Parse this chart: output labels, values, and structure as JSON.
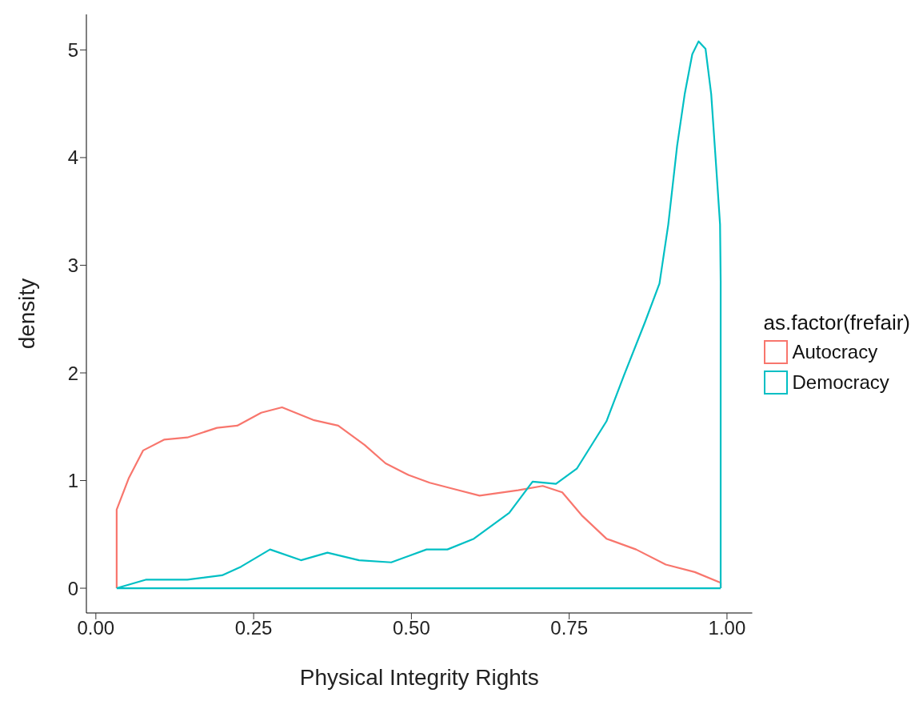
{
  "chart_data": {
    "type": "line",
    "xlabel": "Physical Integrity Rights",
    "ylabel": "density",
    "legend_title": "as.factor(frefair)",
    "legend": "right",
    "grid": false,
    "marker": "none",
    "line_style": "solid",
    "xlim": [
      -0.015,
      1.04
    ],
    "xticks": [
      {
        "value": 0,
        "label": "0.00"
      },
      {
        "value": 0.25,
        "label": "0.25"
      },
      {
        "value": 0.5,
        "label": "0.50"
      },
      {
        "value": 0.75,
        "label": "0.75"
      },
      {
        "value": 1,
        "label": "1.00"
      }
    ],
    "ylim": [
      -0.23,
      5.33
    ],
    "yticks": [
      0,
      1,
      2,
      3,
      4,
      5
    ],
    "ref_lines": [
      {
        "axis": "y",
        "value": 0,
        "color": "#00bfc4"
      }
    ],
    "series": [
      {
        "name": "Autocracy",
        "color": "#f8766d",
        "x": [
          0.033,
          0.033,
          0.052,
          0.075,
          0.108,
          0.145,
          0.192,
          0.224,
          0.262,
          0.295,
          0.346,
          0.384,
          0.426,
          0.459,
          0.496,
          0.529,
          0.568,
          0.608,
          0.669,
          0.708,
          0.739,
          0.771,
          0.809,
          0.856,
          0.903,
          0.949,
          0.99,
          0.99
        ],
        "values": [
          0,
          0.73,
          1.02,
          1.28,
          1.38,
          1.4,
          1.49,
          1.51,
          1.63,
          1.68,
          1.56,
          1.51,
          1.33,
          1.16,
          1.05,
          0.98,
          0.92,
          0.86,
          0.91,
          0.95,
          0.89,
          0.67,
          0.46,
          0.36,
          0.22,
          0.15,
          0.05,
          0
        ]
      },
      {
        "name": "Democracy",
        "color": "#00bfc4",
        "x": [
          0.033,
          0.08,
          0.145,
          0.2,
          0.23,
          0.276,
          0.325,
          0.367,
          0.417,
          0.468,
          0.524,
          0.557,
          0.599,
          0.655,
          0.692,
          0.729,
          0.762,
          0.809,
          0.837,
          0.87,
          0.893,
          0.907,
          0.921,
          0.933,
          0.945,
          0.955,
          0.966,
          0.975,
          0.982,
          0.989,
          0.99,
          0.99
        ],
        "values": [
          0,
          0.08,
          0.08,
          0.12,
          0.2,
          0.36,
          0.26,
          0.33,
          0.26,
          0.24,
          0.36,
          0.36,
          0.46,
          0.7,
          0.99,
          0.97,
          1.11,
          1.55,
          1.98,
          2.47,
          2.83,
          3.38,
          4.11,
          4.59,
          4.96,
          5.08,
          5.01,
          4.59,
          3.99,
          3.38,
          2.85,
          0
        ]
      }
    ]
  }
}
